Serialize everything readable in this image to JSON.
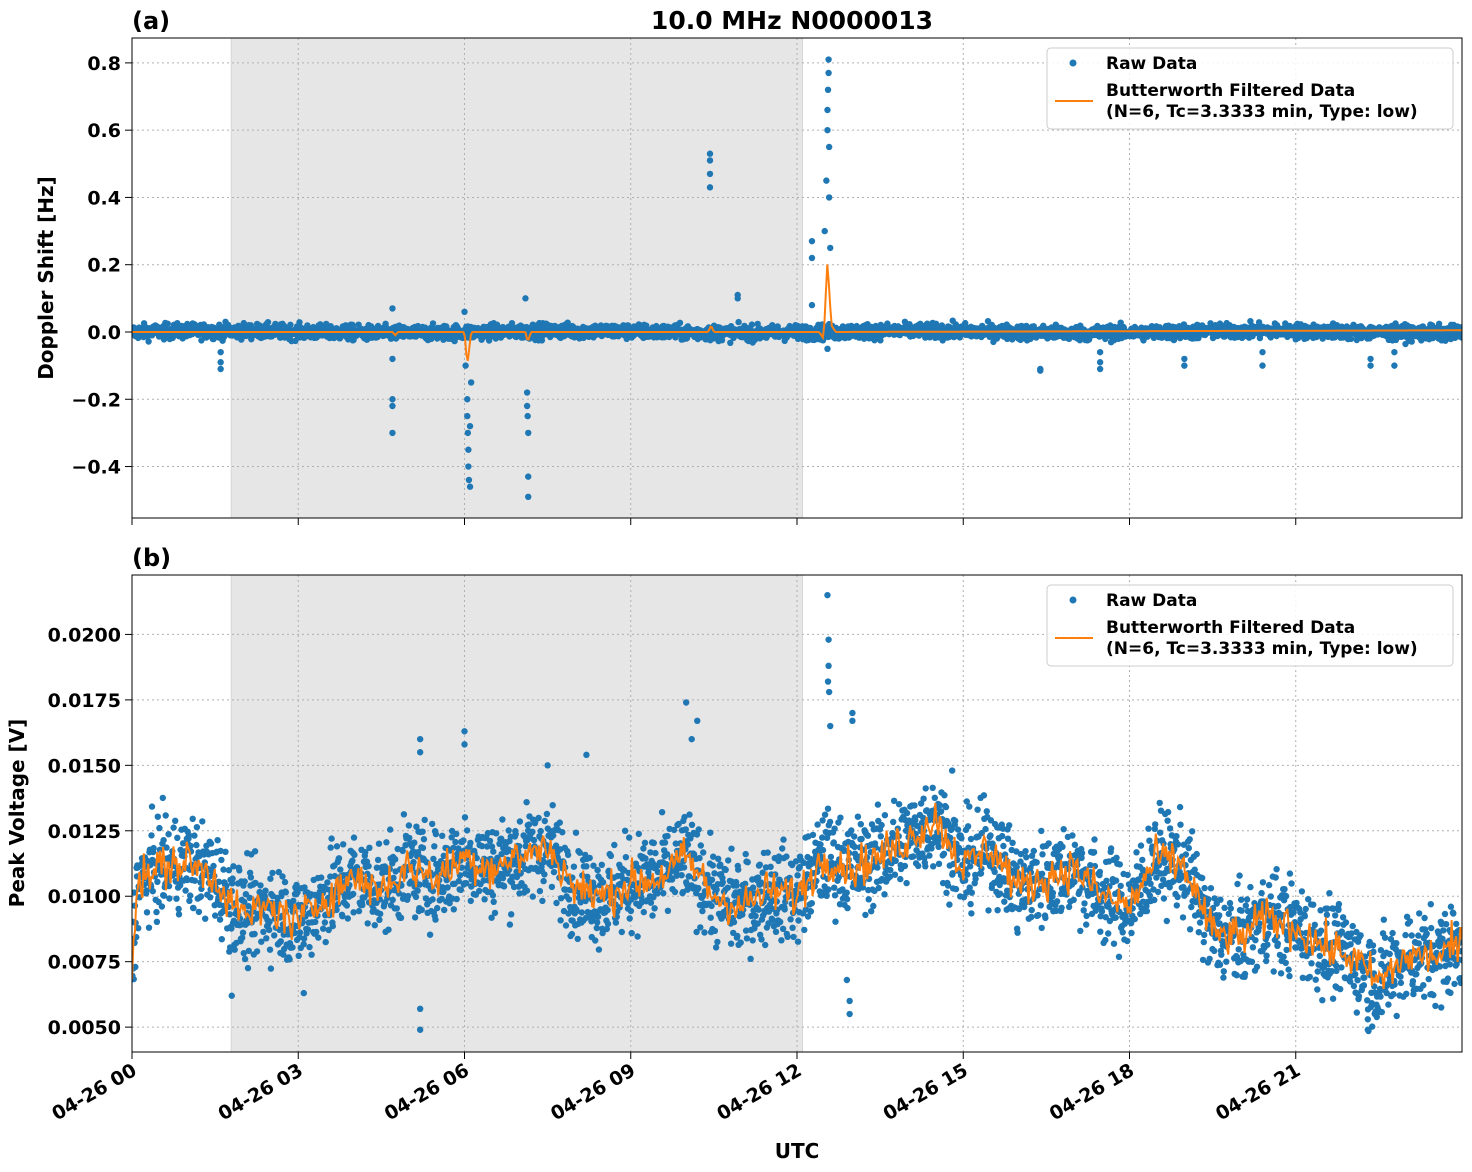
{
  "chart_data": [
    {
      "type": "scatter",
      "panel_label": "(a)",
      "title": "10.0 MHz N0000013",
      "ylabel": "Doppler Shift [Hz]",
      "xlabel": "",
      "ylim": [
        -0.553,
        0.874
      ],
      "yticks": [
        -0.4,
        -0.2,
        0.0,
        0.2,
        0.4,
        0.6,
        0.8
      ],
      "ytick_labels": [
        "−0.4",
        "−0.2",
        "0.0",
        "0.2",
        "0.4",
        "0.6",
        "0.8"
      ],
      "grid": true,
      "legend_position": "top-right",
      "shaded_interval_hours": [
        1.79,
        12.1
      ],
      "series": [
        {
          "name": "Raw Data",
          "style": "points",
          "color": "#1f77b4",
          "typical_spread": 0.02,
          "outliers": [
            [
              1.6,
              -0.06
            ],
            [
              1.6,
              -0.09
            ],
            [
              1.6,
              -0.11
            ],
            [
              4.7,
              0.07
            ],
            [
              4.7,
              -0.08
            ],
            [
              4.7,
              -0.2
            ],
            [
              4.7,
              -0.22
            ],
            [
              4.7,
              -0.3
            ],
            [
              6.0,
              0.06
            ],
            [
              6.02,
              -0.1
            ],
            [
              6.05,
              -0.2
            ],
            [
              6.05,
              -0.25
            ],
            [
              6.06,
              -0.3
            ],
            [
              6.07,
              -0.35
            ],
            [
              6.07,
              -0.4
            ],
            [
              6.08,
              -0.44
            ],
            [
              6.1,
              -0.46
            ],
            [
              6.1,
              -0.28
            ],
            [
              6.12,
              -0.15
            ],
            [
              7.1,
              0.1
            ],
            [
              7.13,
              -0.18
            ],
            [
              7.13,
              -0.22
            ],
            [
              7.14,
              -0.25
            ],
            [
              7.15,
              -0.3
            ],
            [
              7.15,
              -0.43
            ],
            [
              7.15,
              -0.49
            ],
            [
              10.43,
              0.53
            ],
            [
              10.43,
              0.51
            ],
            [
              10.43,
              0.47
            ],
            [
              10.43,
              0.43
            ],
            [
              10.93,
              0.11
            ],
            [
              10.93,
              0.1
            ],
            [
              12.27,
              0.27
            ],
            [
              12.27,
              0.22
            ],
            [
              12.27,
              0.08
            ],
            [
              12.5,
              0.3
            ],
            [
              12.53,
              0.45
            ],
            [
              12.55,
              0.6
            ],
            [
              12.55,
              0.66
            ],
            [
              12.56,
              0.72
            ],
            [
              12.57,
              0.77
            ],
            [
              12.57,
              0.81
            ],
            [
              12.58,
              0.55
            ],
            [
              12.58,
              0.4
            ],
            [
              12.6,
              0.25
            ],
            [
              12.55,
              -0.05
            ],
            [
              16.39,
              -0.11
            ],
            [
              16.39,
              -0.115
            ],
            [
              17.47,
              -0.06
            ],
            [
              17.47,
              -0.09
            ],
            [
              17.47,
              -0.11
            ],
            [
              18.99,
              -0.08
            ],
            [
              18.99,
              -0.1
            ],
            [
              20.4,
              -0.06
            ],
            [
              20.4,
              -0.1
            ],
            [
              22.35,
              -0.08
            ],
            [
              22.35,
              -0.1
            ],
            [
              22.78,
              -0.06
            ],
            [
              22.78,
              -0.1
            ]
          ]
        },
        {
          "name": "Butterworth Filtered Data",
          "name_line2": "(N=6, Tc=3.3333 min, Type: low)",
          "style": "line",
          "color": "#ff7f0e",
          "points": [
            [
              0,
              0.0
            ],
            [
              4.7,
              0.0
            ],
            [
              4.75,
              -0.01
            ],
            [
              4.8,
              0.0
            ],
            [
              6.0,
              0.0
            ],
            [
              6.05,
              -0.1
            ],
            [
              6.12,
              0.0
            ],
            [
              7.1,
              0.0
            ],
            [
              7.14,
              -0.03
            ],
            [
              7.2,
              0.0
            ],
            [
              10.4,
              0.0
            ],
            [
              10.45,
              0.02
            ],
            [
              10.5,
              0.0
            ],
            [
              12.4,
              0.0
            ],
            [
              12.48,
              -0.02
            ],
            [
              12.55,
              0.21
            ],
            [
              12.62,
              0.02
            ],
            [
              12.7,
              0.0
            ],
            [
              24,
              0.005
            ]
          ]
        }
      ]
    },
    {
      "type": "scatter",
      "panel_label": "(b)",
      "ylabel": "Peak Voltage [V]",
      "xlabel": "UTC",
      "ylim": [
        0.00405,
        0.02227
      ],
      "yticks": [
        0.005,
        0.0075,
        0.01,
        0.0125,
        0.015,
        0.0175,
        0.02
      ],
      "ytick_labels": [
        "0.0050",
        "0.0075",
        "0.0100",
        "0.0125",
        "0.0150",
        "0.0175",
        "0.0200"
      ],
      "xlim_hours": [
        0,
        24
      ],
      "xticks_hours": [
        0,
        3,
        6,
        9,
        12,
        15,
        18,
        21
      ],
      "xtick_labels": [
        "04-26 00",
        "04-26 03",
        "04-26 06",
        "04-26 09",
        "04-26 12",
        "04-26 15",
        "04-26 18",
        "04-26 21"
      ],
      "grid": true,
      "legend_position": "top-right",
      "shaded_interval_hours": [
        1.79,
        12.1
      ],
      "series": [
        {
          "name": "Raw Data",
          "style": "points",
          "color": "#1f77b4",
          "typical_spread": 0.0016,
          "outliers": [
            [
              5.2,
              0.016
            ],
            [
              5.2,
              0.0155
            ],
            [
              5.2,
              0.0057
            ],
            [
              5.2,
              0.0049
            ],
            [
              6.0,
              0.0163
            ],
            [
              6.0,
              0.0158
            ],
            [
              7.5,
              0.015
            ],
            [
              8.2,
              0.0154
            ],
            [
              10.0,
              0.0174
            ],
            [
              10.2,
              0.0167
            ],
            [
              10.1,
              0.016
            ],
            [
              12.55,
              0.0215
            ],
            [
              12.57,
              0.0198
            ],
            [
              12.57,
              0.0188
            ],
            [
              12.56,
              0.0182
            ],
            [
              12.58,
              0.0178
            ],
            [
              12.6,
              0.0165
            ],
            [
              13.0,
              0.017
            ],
            [
              13.0,
              0.0167
            ],
            [
              12.95,
              0.0055
            ],
            [
              12.95,
              0.006
            ],
            [
              12.9,
              0.0068
            ],
            [
              14.8,
              0.0148
            ],
            [
              22.3,
              0.0049
            ],
            [
              22.3,
              0.0053
            ],
            [
              23.8,
              0.0096
            ],
            [
              3.1,
              0.0063
            ],
            [
              1.8,
              0.0062
            ]
          ]
        },
        {
          "name": "Butterworth Filtered Data",
          "name_line2": "(N=6, Tc=3.3333 min, Type: low)",
          "style": "line",
          "color": "#ff7f0e",
          "points": [
            [
              0,
              0.0075
            ],
            [
              0.1,
              0.0105
            ],
            [
              0.5,
              0.0111
            ],
            [
              1.0,
              0.0113
            ],
            [
              1.5,
              0.0107
            ],
            [
              2.0,
              0.0092
            ],
            [
              2.5,
              0.0096
            ],
            [
              3.0,
              0.009
            ],
            [
              3.5,
              0.01
            ],
            [
              4.0,
              0.0107
            ],
            [
              4.5,
              0.0103
            ],
            [
              5.0,
              0.0111
            ],
            [
              5.5,
              0.0107
            ],
            [
              6.0,
              0.0115
            ],
            [
              6.5,
              0.0111
            ],
            [
              7.0,
              0.0115
            ],
            [
              7.5,
              0.0119
            ],
            [
              8.0,
              0.0103
            ],
            [
              8.5,
              0.01
            ],
            [
              9.0,
              0.0105
            ],
            [
              9.5,
              0.0107
            ],
            [
              10.0,
              0.0115
            ],
            [
              10.5,
              0.01
            ],
            [
              11.0,
              0.0096
            ],
            [
              11.5,
              0.0102
            ],
            [
              12.0,
              0.01
            ],
            [
              12.5,
              0.0115
            ],
            [
              13.0,
              0.0111
            ],
            [
              13.5,
              0.0115
            ],
            [
              14.0,
              0.0122
            ],
            [
              14.5,
              0.013
            ],
            [
              15.0,
              0.0111
            ],
            [
              15.5,
              0.0119
            ],
            [
              16.0,
              0.0103
            ],
            [
              16.5,
              0.0107
            ],
            [
              17.0,
              0.0111
            ],
            [
              17.5,
              0.01
            ],
            [
              18.0,
              0.0096
            ],
            [
              18.5,
              0.0115
            ],
            [
              19.0,
              0.0111
            ],
            [
              19.5,
              0.0086
            ],
            [
              20.0,
              0.0084
            ],
            [
              20.5,
              0.0092
            ],
            [
              21.0,
              0.0088
            ],
            [
              21.5,
              0.0081
            ],
            [
              22.0,
              0.0077
            ],
            [
              22.5,
              0.0067
            ],
            [
              23.0,
              0.0077
            ],
            [
              23.5,
              0.0077
            ],
            [
              24.0,
              0.0081
            ]
          ]
        }
      ]
    }
  ]
}
